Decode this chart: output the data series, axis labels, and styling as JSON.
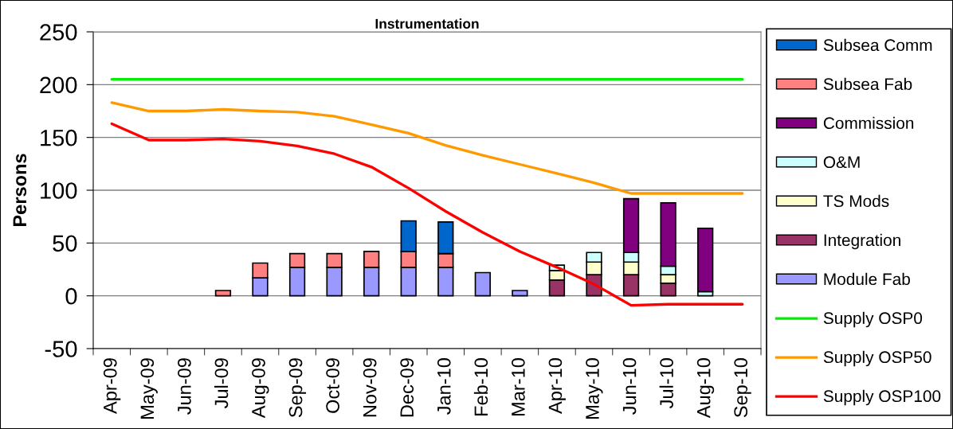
{
  "chart_data": {
    "type": "bar",
    "title": "Instrumentation",
    "ylabel": "Persons",
    "categories": [
      "Apr-09",
      "May-09",
      "Jun-09",
      "Jul-09",
      "Aug-09",
      "Sep-09",
      "Oct-09",
      "Nov-09",
      "Dec-09",
      "Jan-10",
      "Feb-10",
      "Mar-10",
      "Apr-10",
      "May-10",
      "Jun-10",
      "Jul-10",
      "Aug-10",
      "Sep-10"
    ],
    "stacked": true,
    "ylim": [
      -50,
      250
    ],
    "yticks": [
      -50,
      0,
      50,
      100,
      150,
      200,
      250
    ],
    "grid": "y",
    "legend": "right",
    "series": [
      {
        "name": "Module Fab",
        "color": "#9999ff",
        "values": [
          null,
          null,
          null,
          null,
          17,
          27,
          27,
          27,
          27,
          27,
          22,
          5,
          null,
          null,
          null,
          null,
          null,
          null
        ]
      },
      {
        "name": "Integration",
        "color": "#993366",
        "values": [
          null,
          null,
          null,
          null,
          null,
          null,
          null,
          null,
          null,
          null,
          null,
          null,
          15,
          20,
          20,
          12,
          null,
          null
        ]
      },
      {
        "name": "TS Mods",
        "color": "#ffffcc",
        "values": [
          null,
          null,
          null,
          null,
          null,
          null,
          null,
          null,
          null,
          null,
          null,
          null,
          9,
          12,
          12,
          8,
          null,
          null
        ]
      },
      {
        "name": "O&M",
        "color": "#ccffff",
        "values": [
          null,
          null,
          null,
          null,
          null,
          null,
          null,
          null,
          null,
          null,
          null,
          null,
          5,
          9,
          9,
          8,
          4,
          null
        ]
      },
      {
        "name": "Commission",
        "color": "#800080",
        "values": [
          null,
          null,
          null,
          null,
          null,
          null,
          null,
          null,
          null,
          null,
          null,
          null,
          null,
          null,
          51,
          60,
          60,
          null
        ]
      },
      {
        "name": "Subsea Fab",
        "color": "#ff8080",
        "values": [
          null,
          null,
          null,
          5,
          14,
          13,
          13,
          15,
          15,
          13,
          null,
          null,
          null,
          null,
          null,
          null,
          null,
          null
        ]
      },
      {
        "name": "Subsea Comm",
        "color": "#0066cc",
        "values": [
          null,
          null,
          null,
          null,
          null,
          null,
          null,
          null,
          29,
          30,
          null,
          null,
          null,
          null,
          null,
          null,
          null,
          null
        ]
      },
      {
        "name": "Supply OSP0",
        "type": "line",
        "color": "#00ee00",
        "values": [
          205,
          205,
          205,
          205,
          205,
          205,
          205,
          205,
          205,
          205,
          205,
          205,
          205,
          205,
          205,
          205,
          205,
          205
        ]
      },
      {
        "name": "Supply OSP50",
        "type": "line",
        "color": "#ff9900",
        "values": [
          183,
          175,
          175,
          176.5,
          175,
          174,
          170,
          162,
          154,
          142.5,
          133,
          124.5,
          116,
          107,
          97,
          97,
          97,
          97
        ]
      },
      {
        "name": "Supply OSP100",
        "type": "line",
        "color": "#ff0000",
        "values": [
          163,
          147.5,
          147.5,
          148.5,
          146.5,
          142,
          134.5,
          122,
          102,
          80,
          60,
          42,
          27,
          11,
          -9,
          -8,
          -8,
          -8
        ]
      }
    ]
  }
}
